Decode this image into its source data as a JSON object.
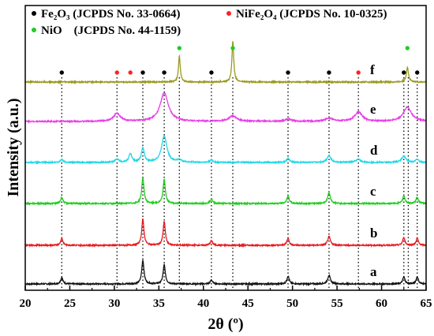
{
  "chart_data": {
    "type": "line",
    "title": "",
    "xlabel": "2θ (º)",
    "ylabel": "Intensity (a.u.)",
    "xlim": [
      20,
      65
    ],
    "xticks": [
      20,
      25,
      30,
      35,
      40,
      45,
      50,
      55,
      60,
      65
    ],
    "xtick_labels": [
      "20",
      "25",
      "30",
      "35",
      "40",
      "45",
      "50",
      "55",
      "60",
      "65"
    ],
    "grid": false,
    "legend_position": "top",
    "legend": [
      {
        "key": "fe2o3",
        "symbol": "●",
        "name": "Fe₂O₃ (JCPDS No. 33-0664)",
        "color": "#000000"
      },
      {
        "key": "nife2o4",
        "symbol": "●",
        "name": "NiFe₂O₄ (JCPDS No. 10-0325)",
        "color": "#ff2222"
      },
      {
        "key": "nio",
        "symbol": "●",
        "name": "NiO    (JCPDS No. 44-1159)",
        "color": "#22cc22"
      }
    ],
    "reference_lines_x": [
      24.1,
      30.3,
      33.2,
      35.6,
      37.3,
      40.9,
      43.3,
      49.5,
      54.1,
      57.4,
      62.5,
      63.0,
      64.0
    ],
    "peak_markers": [
      {
        "x": 24.1,
        "phase": "fe2o3"
      },
      {
        "x": 30.3,
        "phase": "nife2o4"
      },
      {
        "x": 31.8,
        "phase": "nife2o4"
      },
      {
        "x": 33.2,
        "phase": "fe2o3"
      },
      {
        "x": 35.6,
        "phase": "fe2o3"
      },
      {
        "x": 37.3,
        "phase": "nio"
      },
      {
        "x": 40.9,
        "phase": "fe2o3"
      },
      {
        "x": 43.3,
        "phase": "nio"
      },
      {
        "x": 49.5,
        "phase": "fe2o3"
      },
      {
        "x": 54.1,
        "phase": "fe2o3"
      },
      {
        "x": 57.4,
        "phase": "nife2o4"
      },
      {
        "x": 62.5,
        "phase": "fe2o3"
      },
      {
        "x": 62.9,
        "phase": "nio"
      },
      {
        "x": 64.0,
        "phase": "fe2o3"
      }
    ],
    "series": [
      {
        "name": "a",
        "color": "#111111",
        "offset": 0,
        "peaks": [
          [
            24.1,
            8,
            0.15
          ],
          [
            33.2,
            30,
            0.15
          ],
          [
            35.6,
            24,
            0.15
          ],
          [
            40.9,
            5,
            0.15
          ],
          [
            49.5,
            10,
            0.15
          ],
          [
            54.1,
            11,
            0.18
          ],
          [
            62.5,
            9,
            0.15
          ],
          [
            64.0,
            9,
            0.15
          ]
        ]
      },
      {
        "name": "b",
        "color": "#e8191d",
        "offset": 1,
        "peaks": [
          [
            24.1,
            9,
            0.15
          ],
          [
            33.2,
            33,
            0.15
          ],
          [
            35.6,
            30,
            0.15
          ],
          [
            40.9,
            6,
            0.15
          ],
          [
            49.5,
            9,
            0.15
          ],
          [
            54.1,
            11,
            0.18
          ],
          [
            62.5,
            10,
            0.15
          ],
          [
            64.0,
            9,
            0.15
          ]
        ]
      },
      {
        "name": "c",
        "color": "#22cc22",
        "offset": 2,
        "peaks": [
          [
            24.1,
            8,
            0.15
          ],
          [
            33.2,
            33,
            0.15
          ],
          [
            35.6,
            31,
            0.15
          ],
          [
            40.9,
            6,
            0.15
          ],
          [
            49.5,
            10,
            0.15
          ],
          [
            54.1,
            14,
            0.18
          ],
          [
            62.5,
            10,
            0.15
          ],
          [
            64.0,
            8,
            0.15
          ]
        ]
      },
      {
        "name": "d",
        "color": "#22d8e6",
        "offset": 3,
        "peaks": [
          [
            24.1,
            4,
            0.18
          ],
          [
            30.3,
            4,
            0.25
          ],
          [
            31.8,
            11,
            0.2
          ],
          [
            33.2,
            18,
            0.2
          ],
          [
            35.6,
            34,
            0.35
          ],
          [
            37.3,
            3,
            0.3
          ],
          [
            40.9,
            3,
            0.2
          ],
          [
            49.5,
            5,
            0.2
          ],
          [
            54.1,
            9,
            0.25
          ],
          [
            57.4,
            4,
            0.3
          ],
          [
            62.5,
            8,
            0.3
          ],
          [
            64.0,
            4,
            0.2
          ]
        ]
      },
      {
        "name": "e",
        "color": "#e83ee8",
        "offset": 4,
        "peaks": [
          [
            30.3,
            10,
            0.45
          ],
          [
            35.6,
            36,
            0.55
          ],
          [
            43.3,
            7,
            0.5
          ],
          [
            49.5,
            3,
            0.4
          ],
          [
            54.1,
            4,
            0.5
          ],
          [
            57.4,
            12,
            0.5
          ],
          [
            62.9,
            18,
            0.55
          ]
        ]
      },
      {
        "name": "f",
        "color": "#999922",
        "offset": 5,
        "peaks": [
          [
            37.3,
            33,
            0.12
          ],
          [
            43.3,
            52,
            0.12
          ],
          [
            62.9,
            19,
            0.14
          ]
        ]
      }
    ]
  }
}
